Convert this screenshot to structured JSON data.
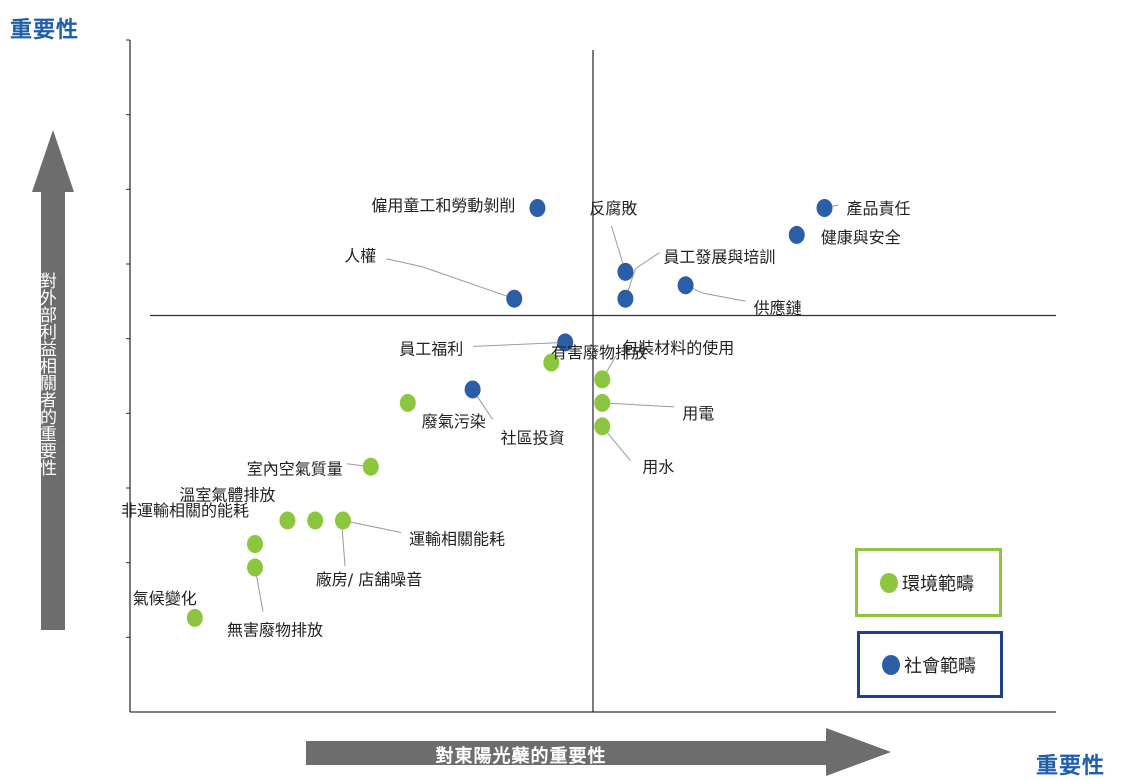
{
  "corner_labels": {
    "y": "重要性",
    "x": "重要性"
  },
  "colors": {
    "environment": "#8cc63f",
    "social": "#2c5ea8",
    "arrow": "#6d6d6d",
    "corner_text": "#1f5fa8",
    "social_border": "#1f3f8f"
  },
  "chart_data": {
    "type": "scatter",
    "xlabel": "對東陽光蘗的重要性",
    "ylabel": "對外部利益相關者的重要性",
    "xlim": [
      0,
      10
    ],
    "ylim": [
      0,
      10
    ],
    "quadrant_lines": {
      "x": 5,
      "y": 5.9
    },
    "legend_position": "bottom-right",
    "series": [
      {
        "name": "環境範疇",
        "color": "#8cc63f",
        "points": [
          {
            "x": 4.55,
            "y": 5.2,
            "label": ""
          },
          {
            "x": 5.1,
            "y": 4.95,
            "label": "包裝材料的使用"
          },
          {
            "x": 5.1,
            "y": 4.6,
            "label": "用電"
          },
          {
            "x": 5.1,
            "y": 4.25,
            "label": "用水"
          },
          {
            "x": 3.0,
            "y": 4.6,
            "label": "廢氣污染"
          },
          {
            "x": 2.6,
            "y": 3.65,
            "label": "室內空氣質量"
          },
          {
            "x": 1.7,
            "y": 2.85,
            "label": "溫室氣體排放"
          },
          {
            "x": 2.0,
            "y": 2.85,
            "label": ""
          },
          {
            "x": 2.3,
            "y": 2.85,
            "label": "運輸相關能耗"
          },
          {
            "x": 1.35,
            "y": 2.5,
            "label": "非運輸相關的能耗"
          },
          {
            "x": 1.35,
            "y": 2.15,
            "label": "無害廢物排放"
          },
          {
            "x": 0.7,
            "y": 1.4,
            "label": "氣候變化"
          }
        ]
      },
      {
        "name": "社會範疇",
        "color": "#2c5ea8",
        "points": [
          {
            "x": 4.4,
            "y": 7.5,
            "label": "僱用童工和勞動剝削"
          },
          {
            "x": 4.15,
            "y": 6.15,
            "label": "人權"
          },
          {
            "x": 4.7,
            "y": 5.5,
            "label": "員工福利"
          },
          {
            "x": 3.7,
            "y": 4.8,
            "label": "社區投資"
          },
          {
            "x": 5.35,
            "y": 6.55,
            "label": "反腐敗"
          },
          {
            "x": 5.35,
            "y": 6.15,
            "label": "員工發展與培訓"
          },
          {
            "x": 6.0,
            "y": 6.35,
            "label": "供應鏈"
          },
          {
            "x": 7.5,
            "y": 7.5,
            "label": "產品責任"
          },
          {
            "x": 7.2,
            "y": 7.1,
            "label": "健康與安全"
          }
        ]
      }
    ],
    "extra_labels": [
      "有害廢物排放",
      "廠房/ 店舖噪音"
    ]
  },
  "legend": {
    "environment": "環境範疇",
    "social": "社會範疇"
  }
}
